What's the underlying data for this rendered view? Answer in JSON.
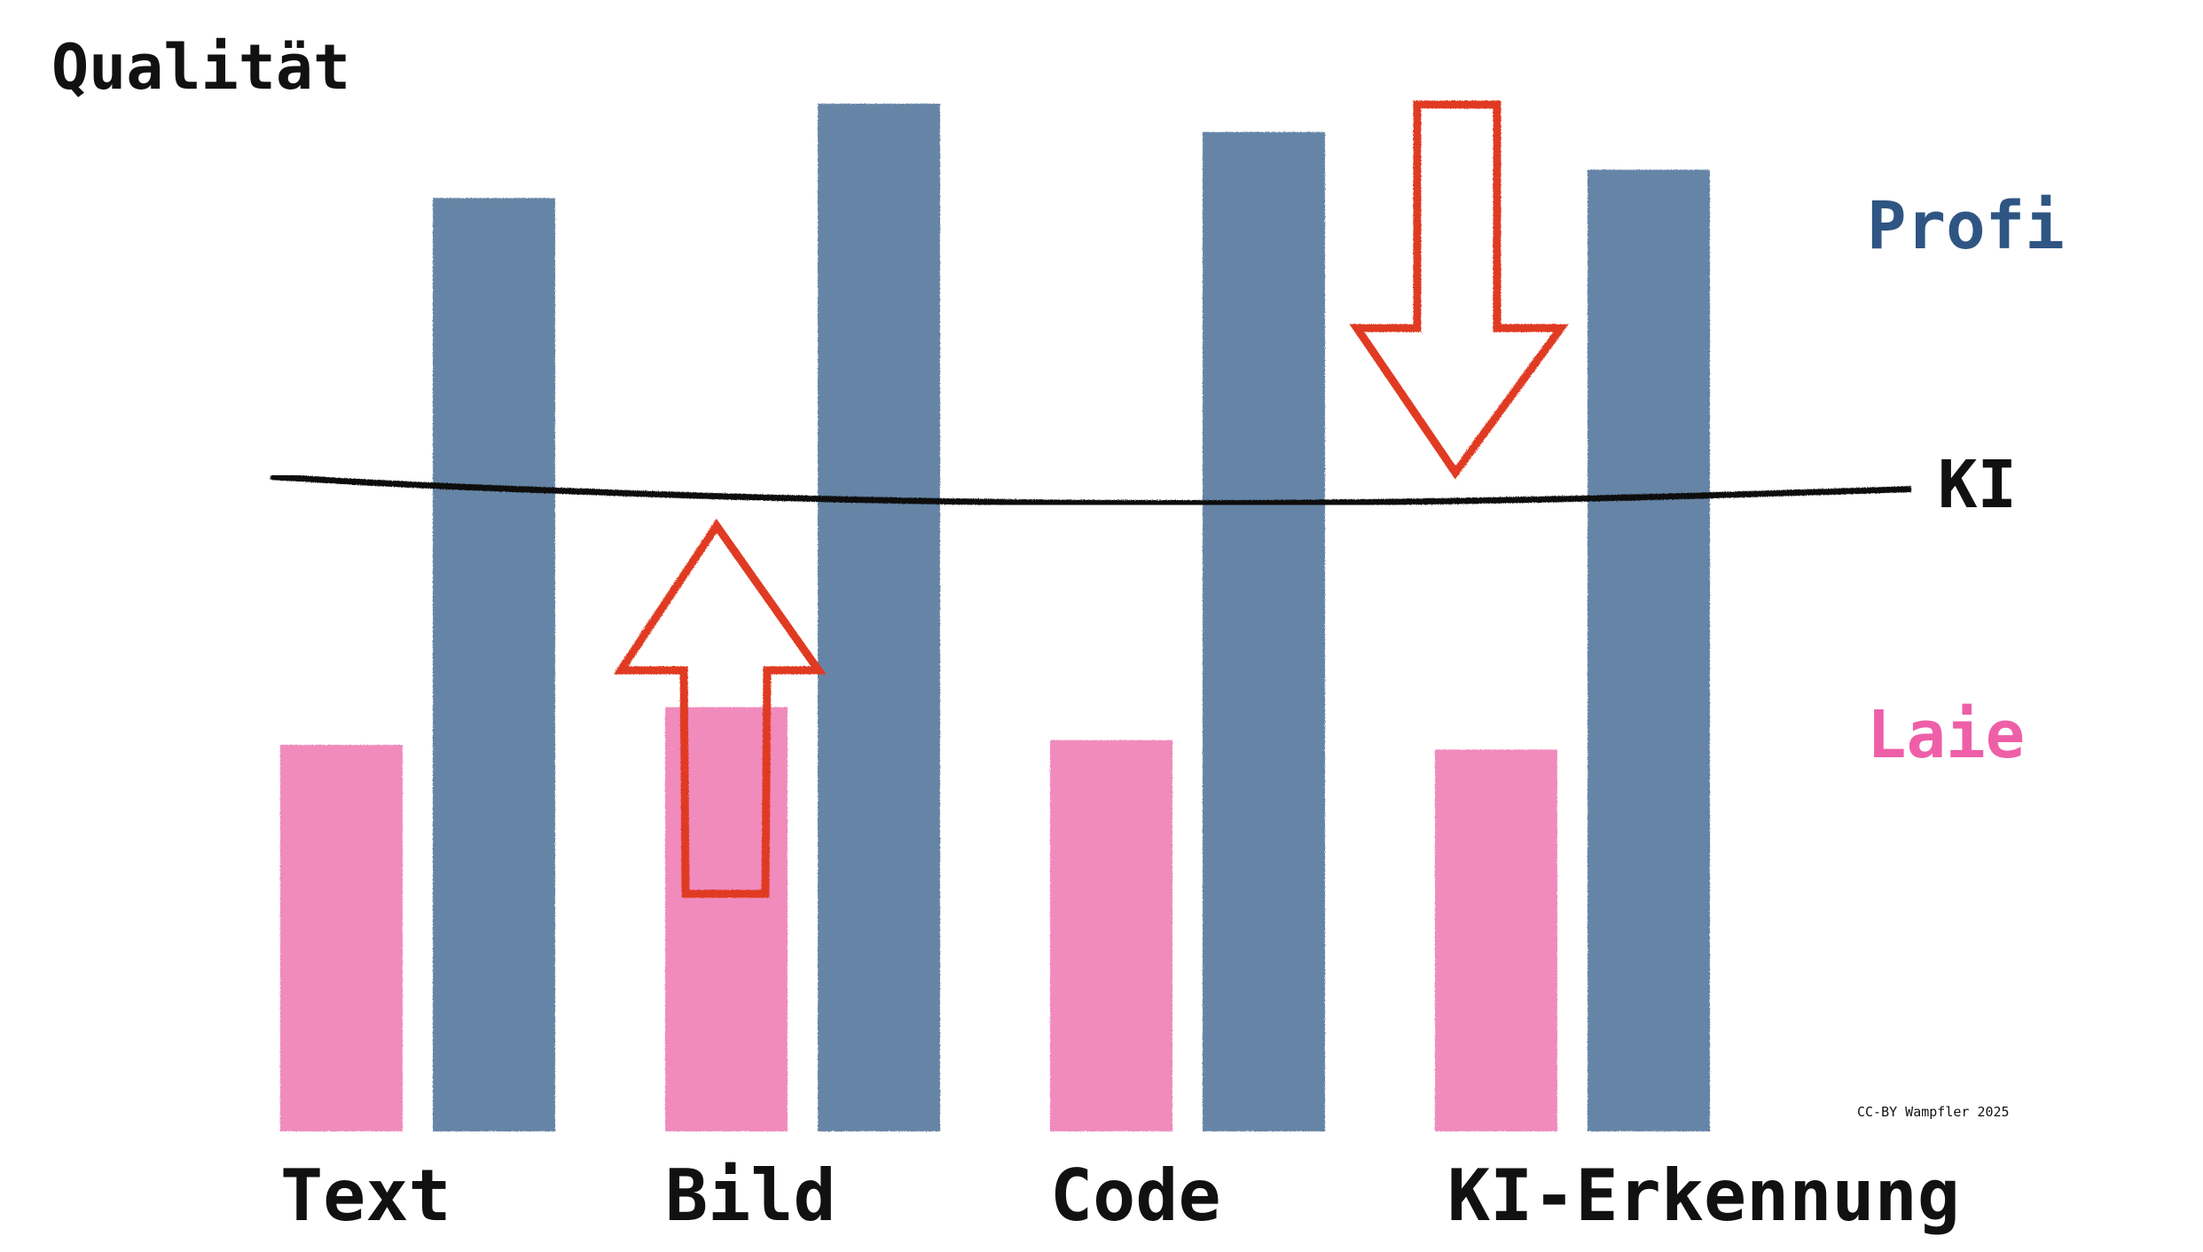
{
  "chart_data": {
    "type": "bar",
    "ylabel": "Qualität",
    "xlabel": "",
    "categories": [
      "Text",
      "Bild",
      "Code",
      "KI-Erkennung"
    ],
    "series": [
      {
        "name": "Laie",
        "color": "#f08bbc",
        "values": [
          41,
          45,
          41.5,
          40.5
        ]
      },
      {
        "name": "Profi",
        "color": "#6685a6",
        "values": [
          99,
          109,
          106,
          102
        ]
      }
    ],
    "ki_line": {
      "label": "KI",
      "color": "#111111",
      "values": [
        68.5,
        67,
        66.5,
        67
      ]
    },
    "ylim": [
      0,
      120
    ],
    "grid": false,
    "legend": "right",
    "annotations": [
      {
        "type": "arrow-up",
        "category": "Bild",
        "color": "#e03a22"
      },
      {
        "type": "arrow-down",
        "category": "KI-Erkennung",
        "color": "#e03a22"
      }
    ],
    "credit": "CC-BY Wampfler 2025"
  }
}
